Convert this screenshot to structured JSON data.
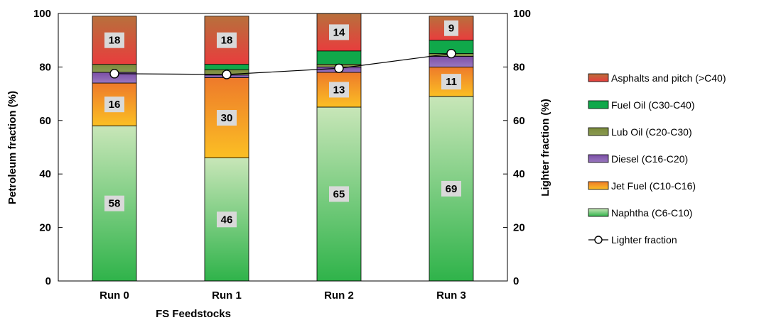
{
  "chart_data": {
    "type": "bar",
    "stacked": true,
    "xlabel": "FS Feedstocks",
    "ylabel": "Petroleum fraction (%)",
    "y2label": "Lighter fraction (%)",
    "ylim": [
      0,
      100
    ],
    "y2lim": [
      0,
      100
    ],
    "yticks": [
      0,
      20,
      40,
      60,
      80,
      100
    ],
    "categories": [
      "Run 0",
      "Run 1",
      "Run 2",
      "Run 3"
    ],
    "legend_position": "right",
    "series": [
      {
        "name": "Naphtha (C6-C10)",
        "values": [
          58,
          46,
          65,
          69
        ],
        "color": "#2fb34a",
        "color_light": "#c8e6b8",
        "labels": [
          "58",
          "46",
          "65",
          "69"
        ]
      },
      {
        "name": "Jet Fuel (C10-C16)",
        "values": [
          16,
          30,
          13,
          11
        ],
        "color": "#fbbf24",
        "color_light": "#ee7a2a",
        "labels": [
          "16",
          "30",
          "13",
          "11"
        ]
      },
      {
        "name": "Diesel (C16-C20)",
        "values": [
          4,
          1,
          2,
          4
        ],
        "color": "#9a78c0",
        "color_light": "#7b4fa6",
        "labels": [
          "",
          "",
          "",
          ""
        ]
      },
      {
        "name": "Lub Oil (C20-C30)",
        "values": [
          3,
          2,
          1,
          1
        ],
        "color": "#8a9a50",
        "color_light": "#7a8a3c",
        "labels": [
          "",
          "",
          "",
          ""
        ]
      },
      {
        "name": "Fuel Oil (C30-C40)",
        "values": [
          0,
          2,
          5,
          5
        ],
        "color": "#10a84a",
        "color_light": "#10a84a",
        "labels": [
          "",
          "",
          "",
          ""
        ]
      },
      {
        "name": "Asphalts and pitch (>C40)",
        "values": [
          18,
          18,
          14,
          9
        ],
        "color": "#e83d3d",
        "color_light": "#b8703c",
        "labels": [
          "18",
          "18",
          "14",
          "9"
        ]
      }
    ],
    "line": {
      "name": "Lighter fraction",
      "values": [
        77.5,
        77.2,
        79.5,
        85
      ],
      "axis": "right"
    }
  }
}
